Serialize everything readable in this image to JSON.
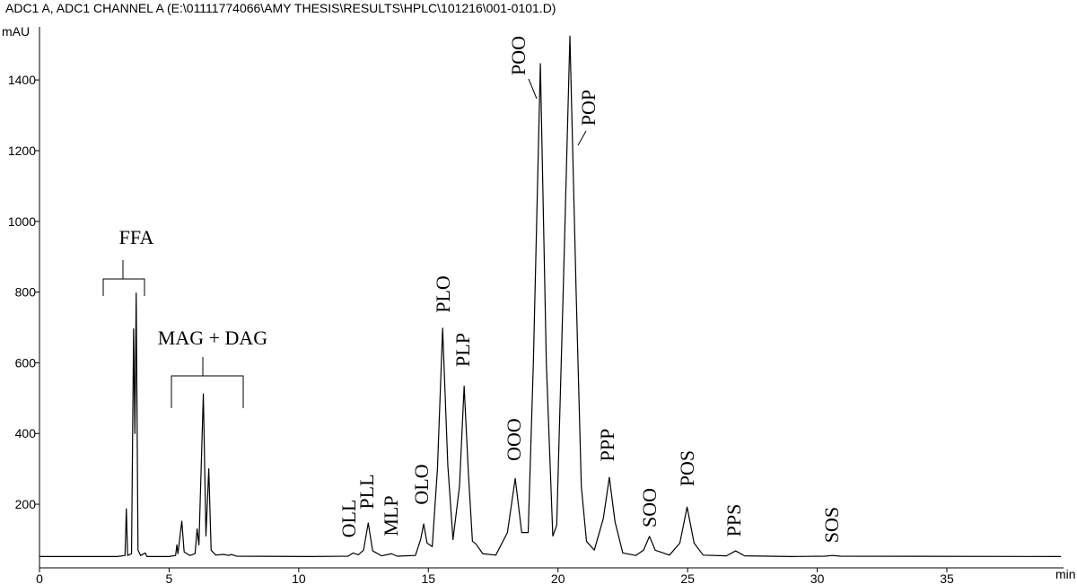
{
  "chart_data": {
    "type": "line",
    "title": "ADC1 A, ADC1 CHANNEL A (E:\\01111774066\\AMY THESIS\\RESULTS\\HPLC\\101216\\001-0101.D)",
    "y_label": "mAU",
    "x_label": "min",
    "xlim": [
      0,
      39.5
    ],
    "ylim": [
      20,
      1550
    ],
    "xticks": [
      0,
      5,
      10,
      15,
      20,
      25,
      30,
      35
    ],
    "yticks": [
      200,
      400,
      600,
      800,
      1000,
      1200,
      1400
    ],
    "annotations": [
      "FFA",
      "MAG + DAG",
      "OLL",
      "PLL",
      "MLP",
      "OLO",
      "PLO",
      "PLP",
      "OOO",
      "POO",
      "POP",
      "PPP",
      "SOO",
      "POS",
      "PPS",
      "SOS"
    ],
    "series": [
      {
        "color": "#000000",
        "x": [
          0,
          3.0,
          3.3,
          3.35,
          3.4,
          3.55,
          3.63,
          3.68,
          3.73,
          3.8,
          3.9,
          4.08,
          4.15,
          5.0,
          5.25,
          5.3,
          5.34,
          5.49,
          5.58,
          5.8,
          6.0,
          6.08,
          6.15,
          6.32,
          6.42,
          6.53,
          6.62,
          6.8,
          7.1,
          7.3,
          7.4,
          7.6,
          10.5,
          11.9,
          12.09,
          12.3,
          12.5,
          12.68,
          12.85,
          13.2,
          13.58,
          13.8,
          14.5,
          14.7,
          14.82,
          14.95,
          15.15,
          15.35,
          15.55,
          15.75,
          15.95,
          16.2,
          16.38,
          16.55,
          16.7,
          16.83,
          17.1,
          17.6,
          18.05,
          18.35,
          18.6,
          18.85,
          19.05,
          19.32,
          19.55,
          19.8,
          19.95,
          20.2,
          20.46,
          20.7,
          20.9,
          21.1,
          21.4,
          21.75,
          21.98,
          22.2,
          22.5,
          23.0,
          23.3,
          23.53,
          23.75,
          24.3,
          24.7,
          24.98,
          25.25,
          25.6,
          26.5,
          26.85,
          27.2,
          29.0,
          30.3,
          30.58,
          30.9,
          39.4
        ],
        "values": [
          52,
          52,
          55,
          187,
          55,
          60,
          696,
          400,
          797,
          70,
          55,
          62,
          52,
          52,
          55,
          85,
          60,
          152,
          65,
          55,
          60,
          130,
          85,
          512,
          110,
          300,
          70,
          56,
          58,
          55,
          58,
          53,
          52,
          53,
          62,
          57,
          70,
          147,
          68,
          54,
          60,
          53,
          55,
          100,
          144,
          90,
          80,
          300,
          698,
          310,
          100,
          250,
          534,
          280,
          95,
          88,
          60,
          56,
          120,
          273,
          120,
          120,
          600,
          1446,
          600,
          110,
          140,
          800,
          1524,
          800,
          250,
          95,
          70,
          160,
          276,
          150,
          62,
          55,
          70,
          109,
          70,
          56,
          90,
          192,
          90,
          56,
          54,
          68,
          54,
          52,
          53,
          55,
          53,
          52
        ]
      }
    ]
  }
}
